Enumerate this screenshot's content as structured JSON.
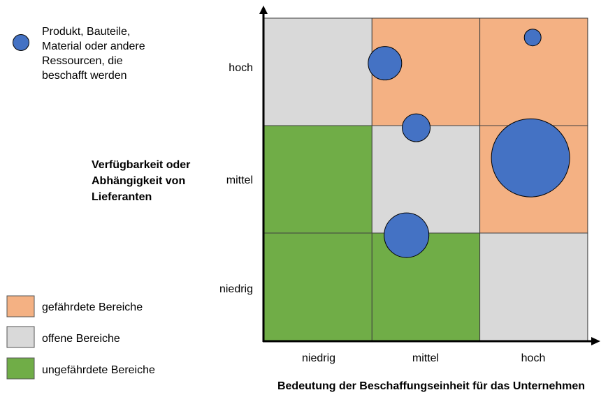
{
  "colors": {
    "endangered": "#f4b183",
    "open": "#d9d9d9",
    "safe": "#70ad47",
    "bubble": "#4472c4",
    "grid_line": "#404040"
  },
  "item_legend": {
    "lines": [
      "Produkt, Bauteile,",
      "Material oder andere",
      "Ressourcen, die",
      "beschafft werden"
    ]
  },
  "y_axis": {
    "title_lines": [
      "Verfügbarkeit oder",
      "Abhängigkeit von",
      "Lieferanten"
    ],
    "levels": [
      "niedrig",
      "mittel",
      "hoch"
    ]
  },
  "x_axis": {
    "title": "Bedeutung der Beschaffungseinheit für das Unternehmen",
    "levels": [
      "niedrig",
      "mittel",
      "hoch"
    ]
  },
  "zones": [
    {
      "key": "endangered",
      "label": "gefährdete Bereiche"
    },
    {
      "key": "open",
      "label": "offene Bereiche"
    },
    {
      "key": "safe",
      "label": "ungefährdete Bereiche"
    }
  ],
  "matrix": [
    {
      "col": 0,
      "row": 0,
      "zone": "safe"
    },
    {
      "col": 1,
      "row": 0,
      "zone": "safe"
    },
    {
      "col": 2,
      "row": 0,
      "zone": "open"
    },
    {
      "col": 0,
      "row": 1,
      "zone": "safe"
    },
    {
      "col": 1,
      "row": 1,
      "zone": "open"
    },
    {
      "col": 2,
      "row": 1,
      "zone": "endangered"
    },
    {
      "col": 0,
      "row": 2,
      "zone": "open"
    },
    {
      "col": 1,
      "row": 2,
      "zone": "endangered"
    },
    {
      "col": 2,
      "row": 2,
      "zone": "endangered"
    }
  ],
  "items": [
    {
      "x": 1.12,
      "y": 2.58,
      "size": 2.4
    },
    {
      "x": 2.49,
      "y": 2.82,
      "size": 1.2
    },
    {
      "x": 1.41,
      "y": 1.98,
      "size": 2.0
    },
    {
      "x": 2.47,
      "y": 1.7,
      "size": 5.6
    },
    {
      "x": 1.32,
      "y": 0.98,
      "size": 3.2
    }
  ]
}
